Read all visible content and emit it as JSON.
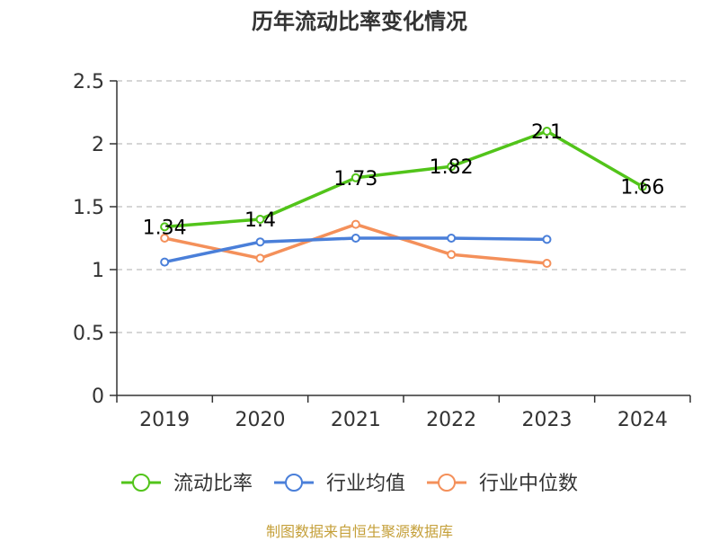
{
  "chart_data": {
    "type": "line",
    "title": "历年流动比率变化情况",
    "categories": [
      "2019",
      "2020",
      "2021",
      "2022",
      "2023",
      "2024"
    ],
    "yticks": [
      "0",
      "0.5",
      "1",
      "1.5",
      "2",
      "2.5"
    ],
    "ylim": [
      0,
      2.5
    ],
    "grid": true,
    "legend_position": "bottom",
    "series": [
      {
        "name": "流动比率",
        "color": "#52c41a",
        "values": [
          1.34,
          1.4,
          1.73,
          1.82,
          2.1,
          1.66
        ],
        "labels": [
          "1.34",
          "1.4",
          "1.73",
          "1.82",
          "2.1",
          "1.66"
        ],
        "show_labels": true
      },
      {
        "name": "行业均值",
        "color": "#4a7fd9",
        "values": [
          1.06,
          1.22,
          1.25,
          1.25,
          1.24,
          null
        ],
        "show_labels": false
      },
      {
        "name": "行业中位数",
        "color": "#f4905a",
        "values": [
          1.25,
          1.09,
          1.36,
          1.12,
          1.05,
          null
        ],
        "show_labels": false
      }
    ],
    "source": "制图数据来自恒生聚源数据库"
  }
}
